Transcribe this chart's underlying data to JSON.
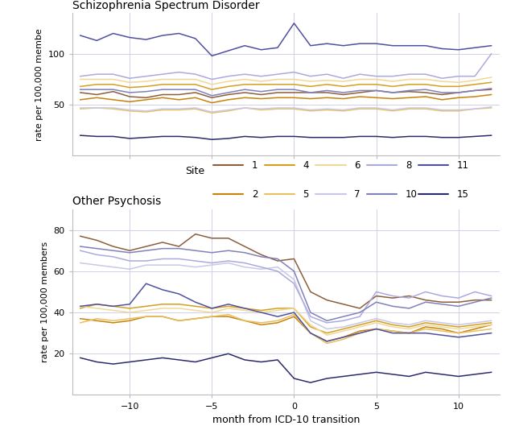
{
  "title_top": "Schizophrenia Spectrum Disorder",
  "title_bottom": "Other Psychosis",
  "xlabel": "month from ICD-10 transition",
  "ylabel_top": "rate per 100,000 membe",
  "ylabel_bottom": "rate per 100,000 members",
  "x": [
    -13,
    -12,
    -11,
    -10,
    -9,
    -8,
    -7,
    -6,
    -5,
    -4,
    -3,
    -2,
    -1,
    0,
    1,
    2,
    3,
    4,
    5,
    6,
    7,
    8,
    9,
    10,
    11,
    12
  ],
  "site_colors": {
    "1": "#8B5E3C",
    "2": "#C8820A",
    "4": "#D4A020",
    "5": "#E8C060",
    "6": "#F0D898",
    "7": "#C8C8E8",
    "8": "#AAAADD",
    "10": "#8080BB",
    "11": "#5050A0",
    "15": "#2B2B6B"
  },
  "schizo": {
    "1": [
      62,
      60,
      63,
      58,
      57,
      60,
      60,
      62,
      57,
      60,
      62,
      60,
      62,
      62,
      62,
      62,
      60,
      62,
      64,
      62,
      63,
      62,
      60,
      62,
      64,
      65
    ],
    "2": [
      55,
      57,
      55,
      53,
      55,
      57,
      55,
      57,
      52,
      55,
      57,
      56,
      57,
      57,
      56,
      57,
      56,
      58,
      57,
      56,
      57,
      58,
      55,
      57,
      58,
      60
    ],
    "4": [
      68,
      70,
      70,
      67,
      68,
      70,
      70,
      70,
      65,
      68,
      70,
      70,
      70,
      70,
      68,
      70,
      68,
      70,
      70,
      68,
      70,
      70,
      68,
      68,
      70,
      72
    ],
    "5": [
      46,
      47,
      46,
      44,
      43,
      45,
      45,
      46,
      42,
      44,
      47,
      45,
      46,
      46,
      44,
      45,
      44,
      46,
      46,
      44,
      46,
      46,
      44,
      44,
      46,
      47
    ],
    "6": [
      75,
      75,
      75,
      72,
      73,
      75,
      75,
      75,
      70,
      73,
      75,
      73,
      75,
      75,
      73,
      74,
      73,
      75,
      75,
      73,
      75,
      75,
      73,
      72,
      74,
      77
    ],
    "7": [
      47,
      47,
      47,
      45,
      44,
      46,
      46,
      47,
      43,
      45,
      47,
      46,
      47,
      47,
      45,
      46,
      45,
      47,
      47,
      45,
      47,
      47,
      45,
      45,
      46,
      48
    ],
    "8": [
      78,
      80,
      80,
      76,
      78,
      80,
      82,
      80,
      75,
      78,
      80,
      78,
      80,
      82,
      78,
      80,
      76,
      80,
      78,
      78,
      80,
      80,
      76,
      78,
      78,
      100
    ],
    "10": [
      65,
      65,
      65,
      62,
      63,
      65,
      65,
      65,
      59,
      62,
      65,
      63,
      65,
      65,
      62,
      64,
      62,
      64,
      64,
      62,
      64,
      65,
      62,
      62,
      64,
      66
    ],
    "11": [
      118,
      113,
      120,
      116,
      114,
      118,
      120,
      115,
      98,
      103,
      108,
      104,
      106,
      130,
      108,
      110,
      108,
      110,
      110,
      108,
      108,
      108,
      105,
      104,
      106,
      108
    ],
    "15": [
      20,
      19,
      19,
      17,
      18,
      19,
      19,
      18,
      16,
      17,
      19,
      18,
      19,
      19,
      18,
      18,
      18,
      19,
      19,
      18,
      19,
      19,
      18,
      18,
      19,
      20
    ]
  },
  "psychosis": {
    "1": [
      77,
      75,
      72,
      70,
      72,
      74,
      72,
      78,
      76,
      76,
      72,
      68,
      65,
      66,
      50,
      46,
      44,
      42,
      48,
      47,
      48,
      46,
      45,
      45,
      46,
      46
    ],
    "2": [
      37,
      36,
      35,
      36,
      38,
      38,
      36,
      37,
      38,
      38,
      36,
      34,
      35,
      38,
      30,
      26,
      28,
      31,
      32,
      31,
      30,
      33,
      32,
      30,
      32,
      34
    ],
    "4": [
      42,
      44,
      43,
      42,
      43,
      44,
      44,
      43,
      42,
      43,
      42,
      41,
      42,
      42,
      33,
      30,
      32,
      34,
      36,
      34,
      33,
      35,
      34,
      33,
      34,
      35
    ],
    "5": [
      35,
      37,
      36,
      37,
      38,
      38,
      36,
      37,
      38,
      39,
      36,
      35,
      36,
      39,
      30,
      25,
      27,
      30,
      32,
      31,
      30,
      32,
      31,
      30,
      31,
      32
    ],
    "6": [
      43,
      42,
      41,
      40,
      41,
      42,
      42,
      41,
      40,
      42,
      41,
      40,
      41,
      42,
      34,
      29,
      31,
      33,
      35,
      33,
      32,
      34,
      33,
      32,
      33,
      34
    ],
    "7": [
      64,
      63,
      62,
      61,
      63,
      63,
      63,
      62,
      63,
      64,
      62,
      61,
      62,
      56,
      36,
      32,
      33,
      35,
      37,
      35,
      34,
      36,
      35,
      34,
      35,
      36
    ],
    "8": [
      70,
      68,
      67,
      65,
      65,
      66,
      66,
      65,
      64,
      65,
      64,
      62,
      60,
      54,
      38,
      35,
      36,
      38,
      50,
      48,
      47,
      50,
      48,
      47,
      50,
      48
    ],
    "10": [
      72,
      71,
      70,
      69,
      70,
      71,
      71,
      70,
      69,
      70,
      69,
      67,
      66,
      60,
      40,
      36,
      38,
      40,
      45,
      43,
      42,
      45,
      44,
      43,
      45,
      47
    ],
    "11": [
      43,
      44,
      43,
      44,
      54,
      51,
      49,
      45,
      42,
      44,
      42,
      40,
      38,
      40,
      30,
      26,
      28,
      30,
      32,
      30,
      30,
      30,
      29,
      28,
      29,
      30
    ],
    "15": [
      18,
      16,
      15,
      16,
      17,
      18,
      17,
      16,
      18,
      20,
      17,
      16,
      17,
      8,
      6,
      8,
      9,
      10,
      11,
      10,
      9,
      11,
      10,
      9,
      10,
      11
    ]
  },
  "legend_row1": [
    "1",
    "4",
    "6",
    "8",
    "11"
  ],
  "legend_row2": [
    "2",
    "5",
    "7",
    "10",
    "15"
  ],
  "background_color": "#ffffff",
  "panel_bg": "#ffffff",
  "grid_color": "#d0d0e8"
}
